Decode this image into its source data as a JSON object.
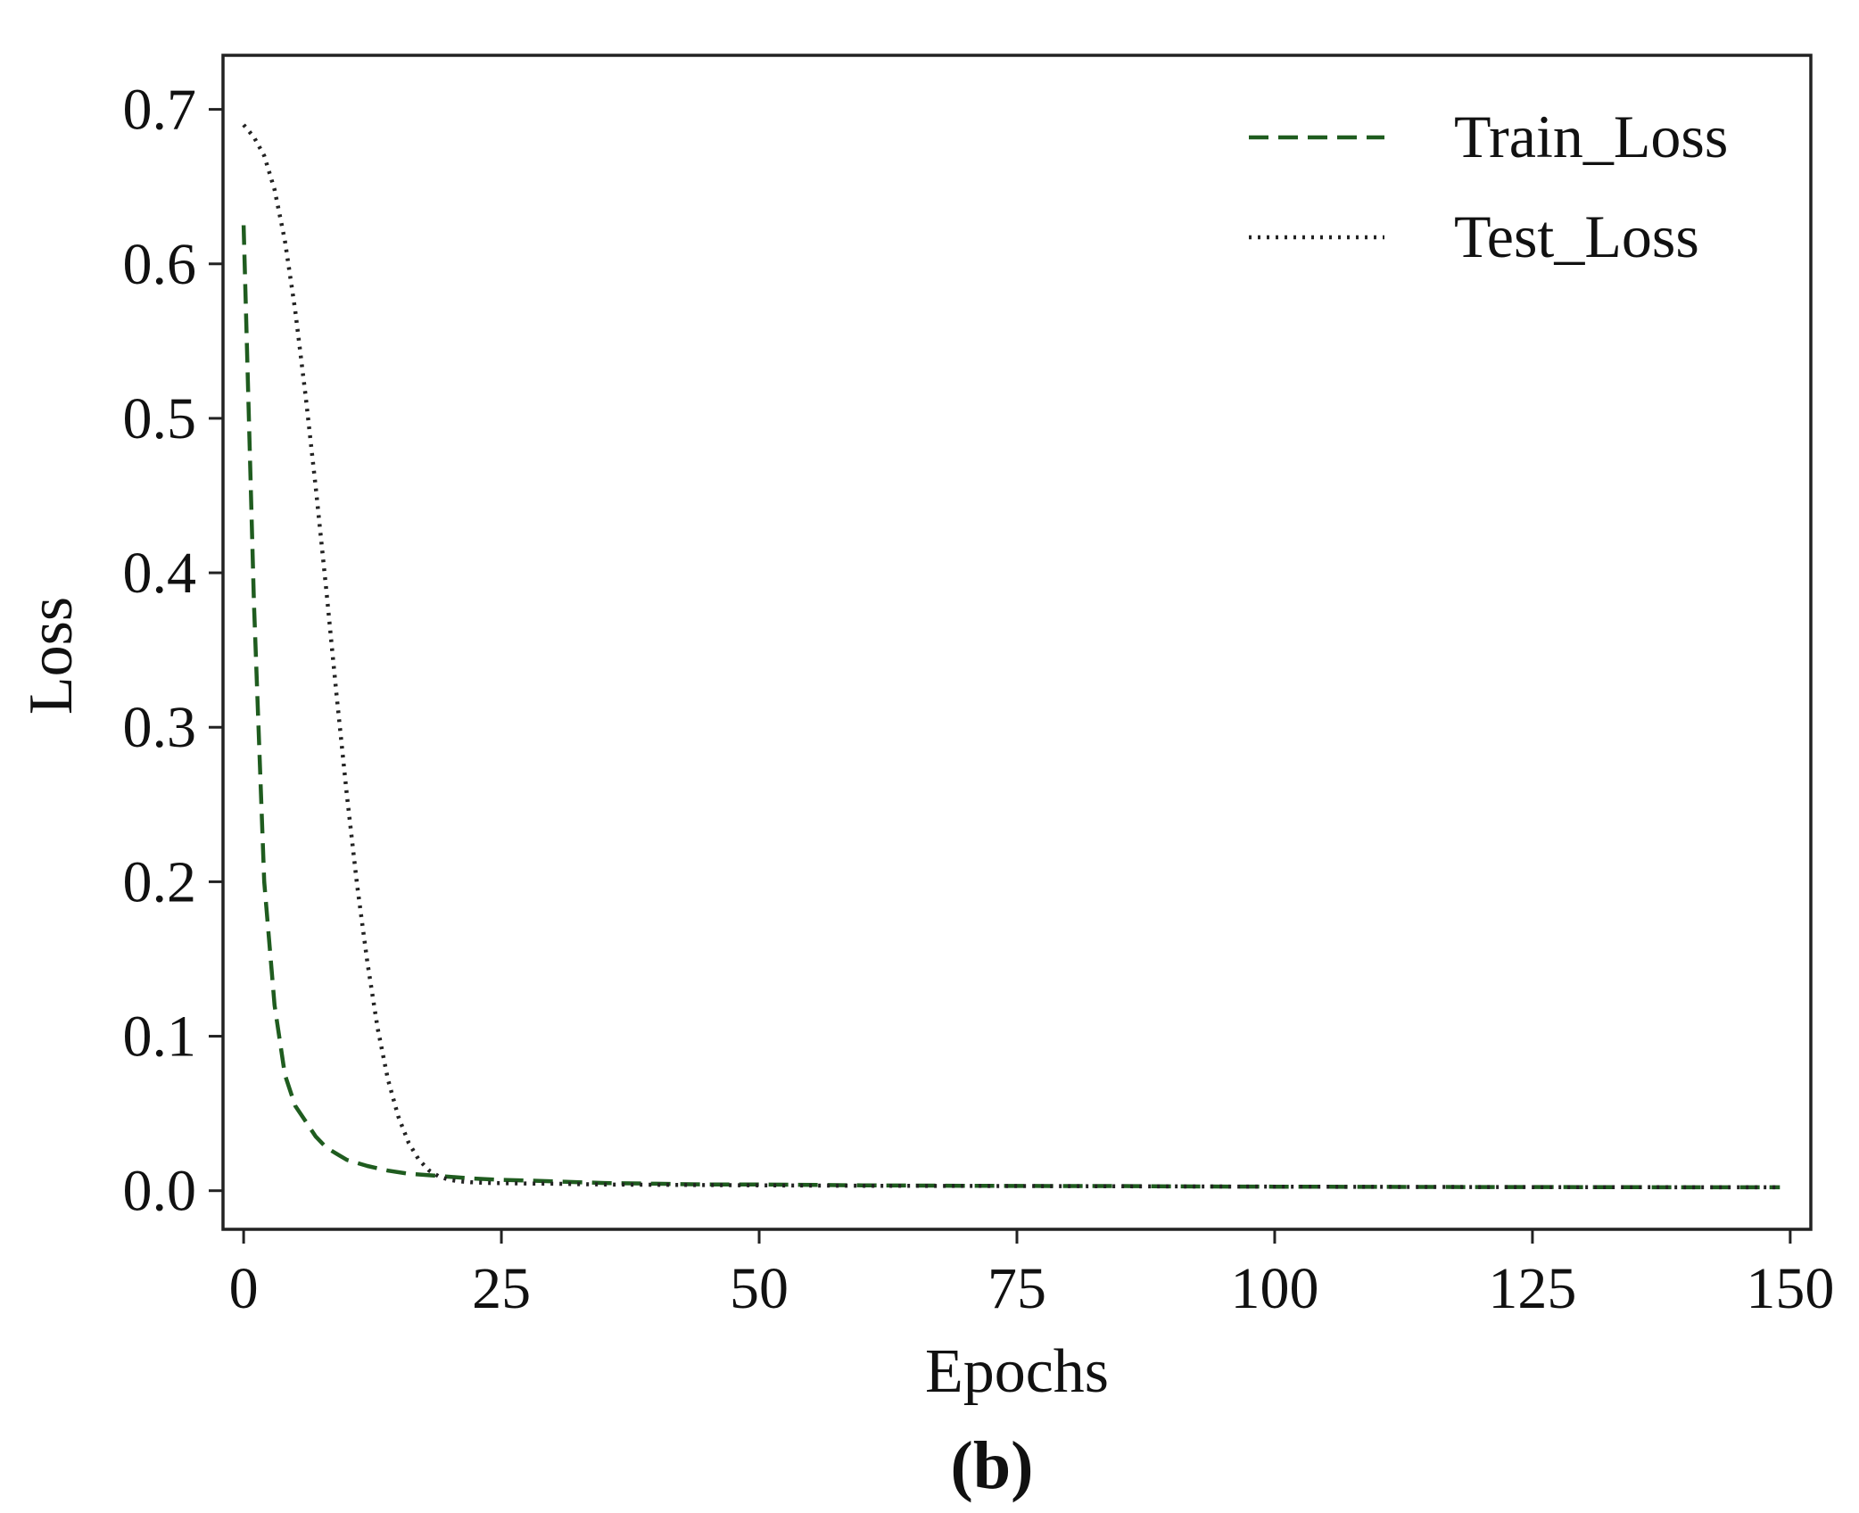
{
  "figure": {
    "panel_label": "(b)"
  },
  "chart_data": {
    "type": "line",
    "xlabel": "Epochs",
    "ylabel": "Loss",
    "xlim": [
      -2,
      152
    ],
    "ylim": [
      -0.025,
      0.735
    ],
    "x_ticks": [
      0,
      25,
      50,
      75,
      100,
      125,
      150
    ],
    "x_tick_labels": [
      "0",
      "25",
      "50",
      "75",
      "100",
      "125",
      "150"
    ],
    "y_ticks": [
      0.0,
      0.1,
      0.2,
      0.3,
      0.4,
      0.5,
      0.6,
      0.7
    ],
    "y_tick_labels": [
      "0.0",
      "0.1",
      "0.2",
      "0.3",
      "0.4",
      "0.5",
      "0.6",
      "0.7"
    ],
    "grid": false,
    "legend_position": "top-right",
    "series": [
      {
        "name": "Train_Loss",
        "style": "dashed",
        "color": "#1f5c1f",
        "x": [
          0,
          1,
          2,
          3,
          4,
          5,
          6,
          7,
          8,
          9,
          10,
          12,
          14,
          16,
          18,
          20,
          22,
          25,
          28,
          30,
          35,
          40,
          45,
          50,
          60,
          70,
          80,
          85,
          90,
          100,
          110,
          120,
          130,
          140,
          149
        ],
        "y": [
          0.625,
          0.38,
          0.2,
          0.12,
          0.075,
          0.055,
          0.045,
          0.035,
          0.028,
          0.024,
          0.02,
          0.016,
          0.013,
          0.011,
          0.01,
          0.009,
          0.008,
          0.007,
          0.0065,
          0.006,
          0.005,
          0.0045,
          0.004,
          0.004,
          0.0035,
          0.0032,
          0.003,
          0.003,
          0.0028,
          0.0026,
          0.0025,
          0.0024,
          0.0023,
          0.0022,
          0.0022
        ]
      },
      {
        "name": "Test_Loss",
        "style": "dotted",
        "color": "#222222",
        "x": [
          0,
          1,
          2,
          3,
          4,
          5,
          6,
          7,
          8,
          9,
          10,
          11,
          12,
          13,
          14,
          15,
          16,
          17,
          18,
          19,
          20,
          21,
          22,
          24,
          26,
          28,
          30,
          35,
          40,
          50,
          60,
          75,
          100,
          125,
          149
        ],
        "y": [
          0.69,
          0.682,
          0.67,
          0.648,
          0.615,
          0.57,
          0.515,
          0.455,
          0.39,
          0.322,
          0.257,
          0.198,
          0.148,
          0.105,
          0.072,
          0.048,
          0.031,
          0.02,
          0.013,
          0.009,
          0.007,
          0.006,
          0.0055,
          0.005,
          0.0048,
          0.0046,
          0.0045,
          0.004,
          0.0038,
          0.0035,
          0.0032,
          0.003,
          0.0026,
          0.0023,
          0.0022
        ]
      }
    ]
  }
}
